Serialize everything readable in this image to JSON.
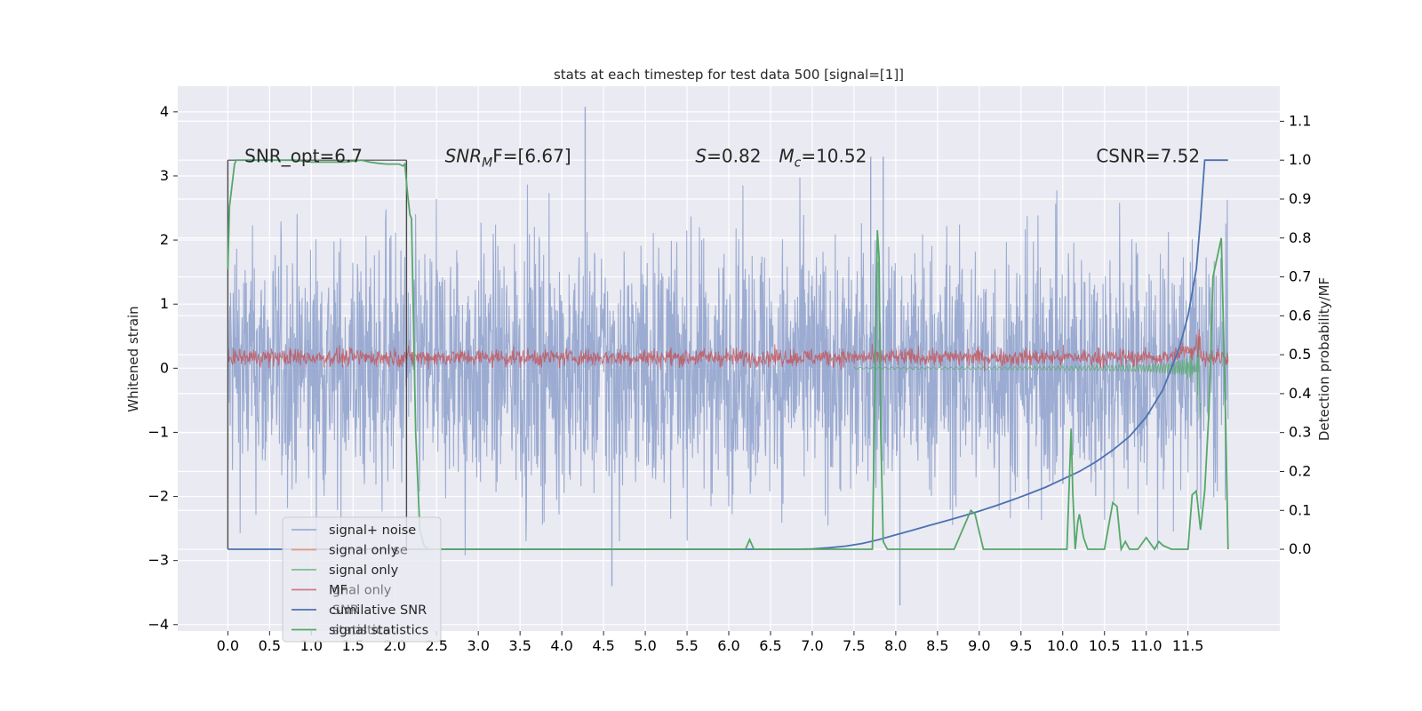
{
  "chart_data": {
    "type": "line",
    "title": "stats at each timestep for test data 500 [signal=[1]]",
    "ylabel_left": "Whitened strain",
    "ylabel_right": "Detection probability/MF",
    "xlim": [
      -0.6,
      12.6
    ],
    "ylim_left": [
      -4.1,
      4.4
    ],
    "ylim_right": [
      -0.21,
      1.19
    ],
    "x_ticks": [
      "0.0",
      "0.5",
      "1.0",
      "1.5",
      "2.0",
      "2.5",
      "3.0",
      "3.5",
      "4.0",
      "4.5",
      "5.0",
      "5.5",
      "6.0",
      "6.5",
      "7.0",
      "7.5",
      "8.0",
      "8.5",
      "9.0",
      "9.5",
      "10.0",
      "10.5",
      "11.0",
      "11.5"
    ],
    "y_ticks_left": [
      "4",
      "3",
      "2",
      "1",
      "0",
      "−1",
      "−2",
      "−3",
      "−4"
    ],
    "y_ticks_right": [
      "1.1",
      "1.0",
      "0.9",
      "0.8",
      "0.7",
      "0.6",
      "0.5",
      "0.4",
      "0.3",
      "0.2",
      "0.1",
      "0.0"
    ],
    "grid": true,
    "annotations": [
      {
        "id": "snr-opt",
        "text": "SNR_opt=6.7",
        "x": 0.2,
        "y": 0.995
      },
      {
        "id": "snr-mf",
        "math": "SNR",
        "sub": "M",
        "rest": "F=[6.67]",
        "x": 2.6,
        "y": 0.995
      },
      {
        "id": "s-value",
        "math": "S",
        "rest": "=0.82",
        "x": 5.6,
        "y": 0.995
      },
      {
        "id": "mc-value",
        "math": "M",
        "sub": "c",
        "rest": "=10.52",
        "x": 6.6,
        "y": 0.995
      },
      {
        "id": "csnr",
        "text": "CSNR=7.52",
        "x": 10.4,
        "y": 0.995
      }
    ],
    "window_markers": [
      0.0,
      2.14
    ],
    "legend_placement": "lower-left",
    "legend": [
      {
        "label": "signal+ noise",
        "color": "#8da0cb",
        "alpha": 0.8
      },
      {
        "label": "signal only",
        "color": "#dd8452",
        "alpha": 0.7
      },
      {
        "label": "signal only",
        "color": "#55a868",
        "alpha": 0.7
      },
      {
        "label": "MF",
        "color": "#c44e52",
        "alpha": 0.7
      },
      {
        "label": "cumilative SNR",
        "color": "#4c72b0",
        "alpha": 1.0
      },
      {
        "label": "signal statistics",
        "color": "#55a868",
        "alpha": 1.0
      }
    ],
    "legend_ghost_labels": [
      {
        "text": "se",
        "x": 1.98,
        "row": 1
      },
      {
        "text": "gnal only",
        "x": 1.25,
        "row": 3
      },
      {
        "text": "SNR",
        "x": 1.25,
        "row": 4
      },
      {
        "text": "statistics",
        "x": 1.25,
        "row": 5
      }
    ],
    "series": [
      {
        "name": "cumilative SNR",
        "axis": "right",
        "color": "#4c72b0",
        "x": [
          0.0,
          6.5,
          6.8,
          7.0,
          7.2,
          7.4,
          7.6,
          7.8,
          8.0,
          8.2,
          8.4,
          8.6,
          8.8,
          9.0,
          9.2,
          9.4,
          9.6,
          9.8,
          10.0,
          10.2,
          10.4,
          10.6,
          10.8,
          11.0,
          11.2,
          11.4,
          11.5,
          11.6,
          11.65,
          11.7,
          11.98
        ],
        "y": [
          0.0,
          0.0,
          0.0,
          0.001,
          0.004,
          0.008,
          0.015,
          0.025,
          0.037,
          0.049,
          0.061,
          0.073,
          0.085,
          0.098,
          0.112,
          0.127,
          0.143,
          0.16,
          0.18,
          0.2,
          0.225,
          0.255,
          0.29,
          0.34,
          0.41,
          0.52,
          0.6,
          0.72,
          0.85,
          1.0,
          1.0
        ]
      },
      {
        "name": "signal statistics",
        "axis": "right",
        "color": "#55a868",
        "x": [
          0.0,
          0.02,
          0.08,
          0.1,
          0.2,
          0.3,
          0.5,
          0.8,
          1.0,
          1.2,
          1.4,
          1.6,
          1.7,
          1.8,
          1.9,
          2.0,
          2.05,
          2.1,
          2.12,
          2.15,
          2.18,
          2.2,
          2.25,
          2.3,
          2.35,
          2.4,
          2.6,
          3.0,
          3.5,
          4.0,
          4.5,
          5.0,
          5.5,
          6.0,
          6.2,
          6.25,
          6.3,
          6.4,
          7.0,
          7.5,
          7.72,
          7.75,
          7.78,
          7.8,
          7.82,
          7.85,
          7.9,
          7.95,
          8.0,
          8.3,
          8.7,
          8.9,
          8.95,
          9.05,
          9.15,
          9.3,
          9.7,
          9.9,
          10.0,
          10.05,
          10.1,
          10.12,
          10.15,
          10.18,
          10.2,
          10.25,
          10.3,
          10.4,
          10.5,
          10.6,
          10.65,
          10.7,
          10.75,
          10.8,
          10.85,
          10.9,
          11.0,
          11.1,
          11.15,
          11.2,
          11.3,
          11.4,
          11.5,
          11.55,
          11.6,
          11.65,
          11.7,
          11.75,
          11.8,
          11.9,
          11.95,
          11.98
        ],
        "y": [
          0.72,
          0.88,
          0.99,
          1.0,
          1.0,
          1.0,
          1.0,
          1.0,
          0.995,
          0.995,
          0.995,
          1.0,
          0.995,
          0.992,
          0.99,
          0.99,
          0.99,
          0.985,
          0.99,
          0.92,
          0.86,
          0.85,
          0.3,
          0.05,
          0.01,
          0.0,
          0.0,
          0.0,
          0.0,
          0.0,
          0.0,
          0.0,
          0.0,
          0.0,
          0.0,
          0.025,
          0.0,
          0.0,
          0.0,
          0.0,
          0.0,
          0.4,
          0.82,
          0.75,
          0.3,
          0.02,
          0.0,
          0.0,
          0.0,
          0.0,
          0.0,
          0.1,
          0.09,
          0.0,
          0.0,
          0.0,
          0.0,
          0.0,
          0.0,
          0.0,
          0.31,
          0.15,
          0.0,
          0.07,
          0.09,
          0.03,
          0.0,
          0.0,
          0.0,
          0.12,
          0.11,
          0.0,
          0.02,
          0.0,
          0.0,
          0.0,
          0.03,
          0.0,
          0.02,
          0.01,
          0.0,
          0.0,
          0.0,
          0.14,
          0.15,
          0.05,
          0.15,
          0.35,
          0.7,
          0.8,
          0.35,
          0.0
        ]
      },
      {
        "name": "signal+ noise",
        "axis": "left",
        "color": "#8da0cb",
        "representation": "dense noise trace",
        "x_range": [
          0.0,
          11.98
        ],
        "typical_range": [
          -1.8,
          1.8
        ],
        "extremes": [
          {
            "x": 4.28,
            "y": 4.08
          },
          {
            "x": 8.05,
            "y": -3.7
          },
          {
            "x": 4.6,
            "y": -3.4
          },
          {
            "x": 7.85,
            "y": 3.3
          },
          {
            "x": 7.7,
            "y": 3.3
          }
        ]
      },
      {
        "name": "MF",
        "axis": "left",
        "color": "#c44e52",
        "representation": "dense noise trace",
        "x_range": [
          0.0,
          11.98
        ],
        "typical_range": [
          0.0,
          0.4
        ]
      },
      {
        "name": "signal only",
        "axis": "left",
        "color": "#55a868",
        "representation": "chirp envelope",
        "x_range": [
          7.5,
          11.65
        ],
        "envelope_max": 0.95
      }
    ]
  }
}
